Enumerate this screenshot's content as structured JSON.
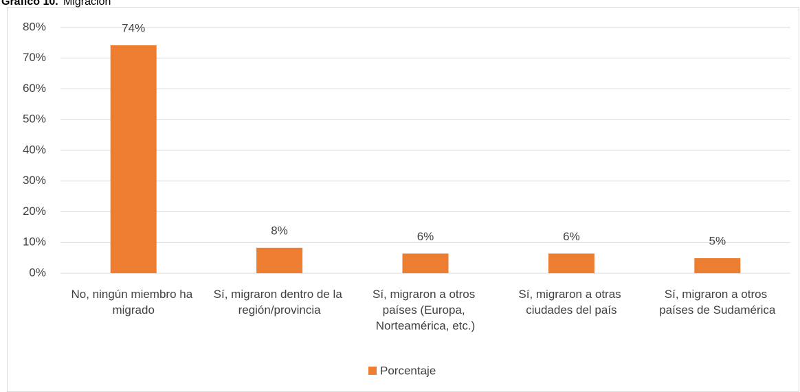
{
  "chart_data": {
    "type": "bar",
    "title_label": "Gráfico 10.",
    "title": "Migración",
    "categories": [
      "No, ningún miembro ha migrado",
      "Sí, migraron dentro de la región/provincia",
      "Sí, migraron a otros países (Europa, Norteamérica, etc.)",
      "Sí, migraron a otras ciudades del país",
      "Sí, migraron a otros países de Sudamérica"
    ],
    "series": [
      {
        "name": "Porcentaje",
        "color": "#ED7D31",
        "values": [
          74.2,
          8.3,
          6.4,
          6.4,
          4.9
        ],
        "value_labels": [
          "74%",
          "8%",
          "6%",
          "6%",
          "5%"
        ]
      }
    ],
    "ylim": [
      0,
      80
    ],
    "yticks": [
      {
        "value": 0,
        "label": "0%"
      },
      {
        "value": 10,
        "label": "10%"
      },
      {
        "value": 20,
        "label": "20%"
      },
      {
        "value": 30,
        "label": "30%"
      },
      {
        "value": 40,
        "label": "40%"
      },
      {
        "value": 50,
        "label": "50%"
      },
      {
        "value": 60,
        "label": "60%"
      },
      {
        "value": 70,
        "label": "70%"
      },
      {
        "value": 80,
        "label": "80%"
      }
    ],
    "grid": true,
    "legend": "bottom"
  }
}
